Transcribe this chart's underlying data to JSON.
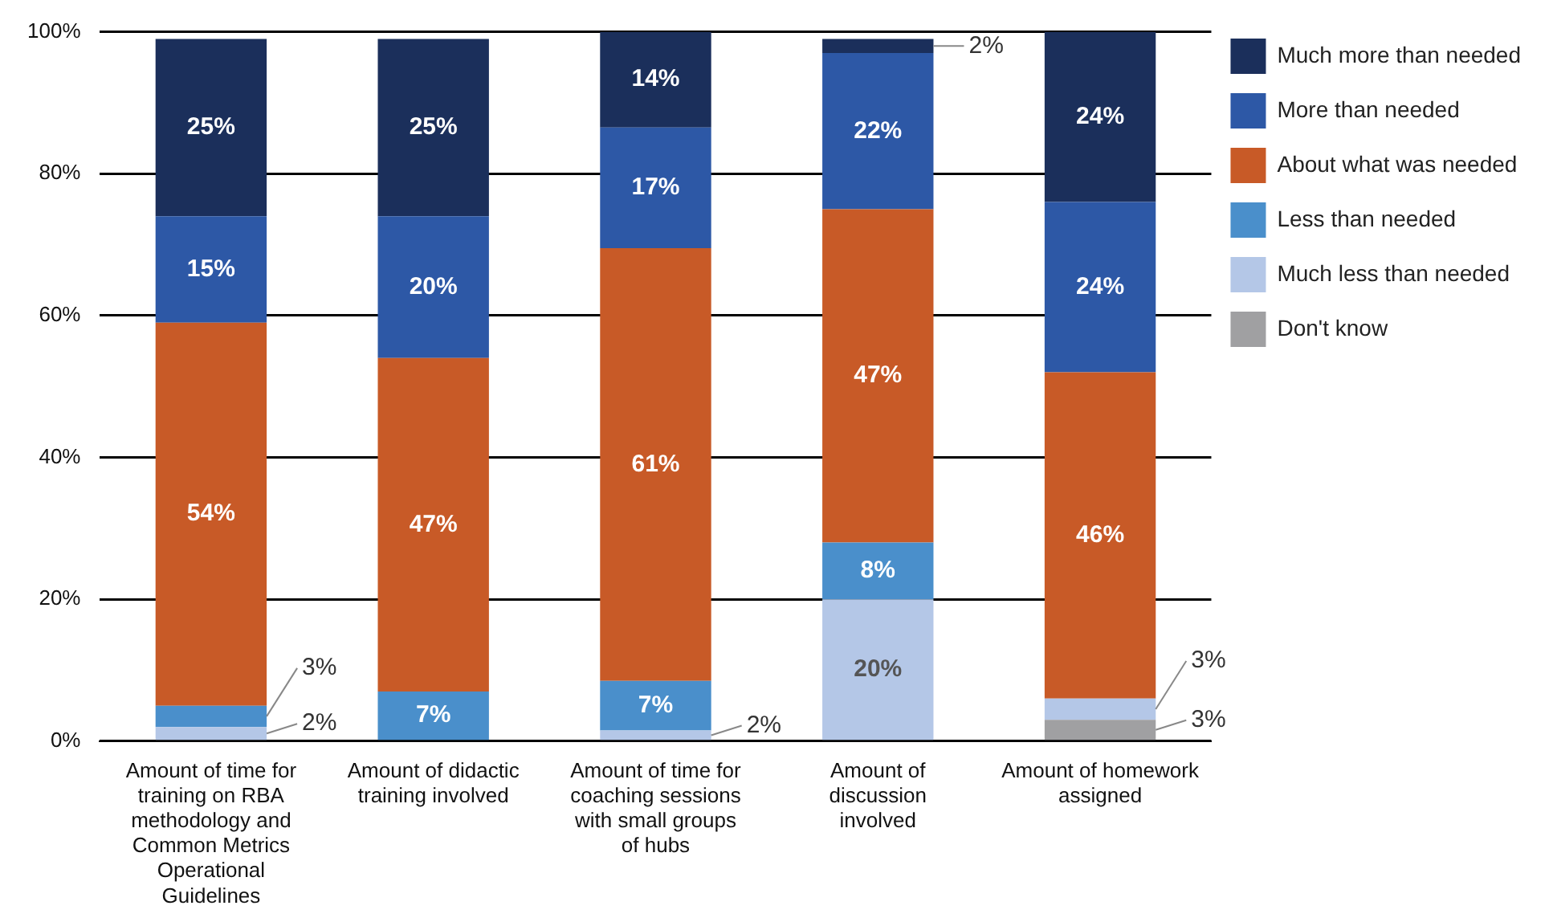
{
  "chart_data": {
    "type": "bar",
    "stacked": true,
    "categories": [
      "Amount of time for training on RBA methodology and Common Metrics Operational Guidelines",
      "Amount of didactic training involved",
      "Amount of time for coaching sessions with small groups of hubs",
      "Amount of discussion involved",
      "Amount of homework assigned"
    ],
    "series": [
      {
        "name": "Don't know",
        "color": "#a0a0a2",
        "values": [
          null,
          null,
          null,
          null,
          3
        ],
        "value_labels": [
          null,
          null,
          null,
          null,
          "3%"
        ]
      },
      {
        "name": "Much less than needed",
        "color": "#b4c7e7",
        "values": [
          2,
          null,
          1.5,
          20,
          3
        ],
        "value_labels": [
          "2%",
          null,
          "2%",
          "20%",
          "3%"
        ]
      },
      {
        "name": "Less than needed",
        "color": "#4a8fcb",
        "values": [
          3,
          7,
          7,
          8,
          null
        ],
        "value_labels": [
          "3%",
          "7%",
          "7%",
          "8%",
          null
        ]
      },
      {
        "name": "About what was needed",
        "color": "#c85a27",
        "values": [
          54,
          47,
          61,
          47,
          46
        ],
        "value_labels": [
          "54%",
          "47%",
          "61%",
          "47%",
          "46%"
        ]
      },
      {
        "name": "More than needed",
        "color": "#2d58a6",
        "values": [
          15,
          20,
          17,
          22,
          24
        ],
        "value_labels": [
          "15%",
          "20%",
          "17%",
          "22%",
          "24%"
        ]
      },
      {
        "name": "Much more than needed",
        "color": "#1b2f5b",
        "values": [
          25,
          25,
          13.5,
          2,
          24
        ],
        "value_labels": [
          "25%",
          "25%",
          "14%",
          "2%",
          "24%"
        ]
      }
    ],
    "ylim": [
      0,
      100
    ],
    "yticks": [
      {
        "value": 0,
        "label": "0%"
      },
      {
        "value": 20,
        "label": "20%"
      },
      {
        "value": 40,
        "label": "40%"
      },
      {
        "value": 60,
        "label": "60%"
      },
      {
        "value": 80,
        "label": "80%"
      },
      {
        "value": 100,
        "label": "100%"
      }
    ],
    "grid": "y",
    "legend": "right"
  }
}
